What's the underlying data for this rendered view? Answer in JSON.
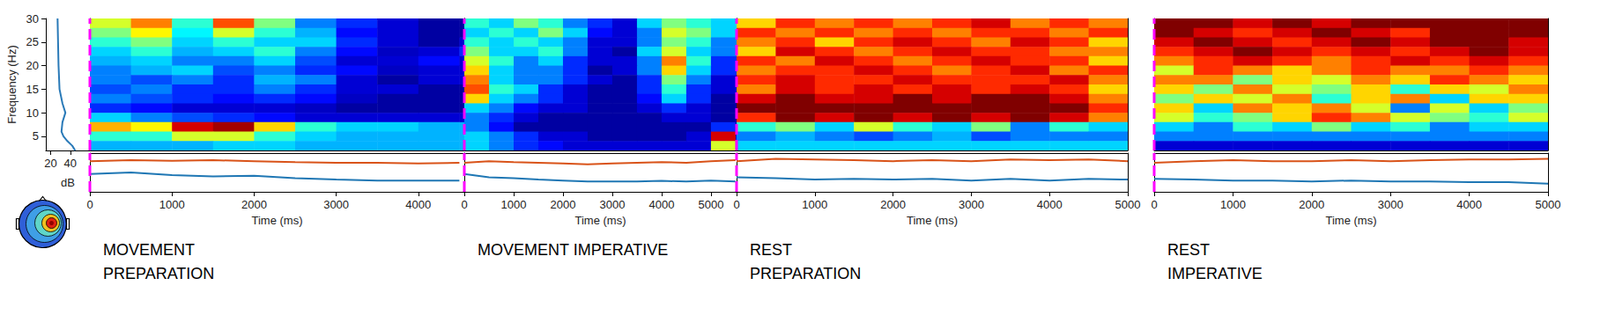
{
  "chart_data": {
    "type": "heatmap",
    "ylabel": "Frequency (Hz)",
    "xlabel": "Time (ms)",
    "ylim": [
      2,
      30
    ],
    "yticks": [
      5,
      10,
      15,
      20,
      25,
      30
    ],
    "freqs": [
      29,
      27,
      25,
      23,
      21,
      19,
      17,
      15,
      13,
      11,
      9,
      7,
      5,
      3
    ],
    "color_range": [
      -3,
      3
    ],
    "event": 0,
    "event_color": "#ff00ff",
    "baseline": {
      "type": "line",
      "xlabel": "dB",
      "xlim": [
        15,
        60
      ],
      "xticks": [
        20,
        40
      ],
      "color": "#2a7ab8",
      "freqs": [
        30,
        25,
        20,
        15,
        12,
        10,
        8,
        6,
        5,
        4,
        3,
        2
      ],
      "values": [
        27,
        27.5,
        28,
        29,
        32,
        35,
        32,
        31,
        33,
        37,
        42,
        45
      ]
    },
    "envelope": {
      "ylim": [
        -6,
        6
      ],
      "colors": [
        "#d95319",
        "#1f77b4"
      ]
    },
    "panels": [
      {
        "label": [
          "MOVEMENT",
          "PREPARATION"
        ],
        "xlim": [
          0,
          4560
        ],
        "xticks": [
          0,
          1000,
          2000,
          3000,
          4000
        ],
        "times": [
          250,
          750,
          1250,
          1750,
          2250,
          2750,
          3250,
          3750,
          4250,
          4750
        ],
        "ersp": [
          [
            0.5,
            1.5,
            -0.5,
            1.8,
            0,
            -1.5,
            -2,
            -2.5,
            -2.8,
            -2.8
          ],
          [
            0,
            0.8,
            -0.8,
            0.5,
            -0.5,
            -1.2,
            -2.2,
            -2.5,
            -2.8,
            -2.8
          ],
          [
            -0.5,
            0,
            -1,
            -0.5,
            -1,
            -1,
            -2,
            -2.5,
            -2.8,
            -2.5
          ],
          [
            -1,
            -0.5,
            -1.2,
            -1,
            -0.5,
            -1.5,
            -2.2,
            -2.6,
            -2.5,
            -2
          ],
          [
            -1.2,
            -1,
            -1.5,
            -1.5,
            -1,
            -1.8,
            -2.5,
            -2.5,
            -2.2,
            -2.5
          ],
          [
            -1.5,
            -1.2,
            -1,
            -1.8,
            -1.5,
            -2,
            -2.2,
            -2.6,
            -2.5,
            -2.5
          ],
          [
            -1.5,
            -1.8,
            -1.5,
            -2,
            -1.2,
            -1.5,
            -2.5,
            -2.8,
            -2.5,
            -2.5
          ],
          [
            -1.8,
            -1.5,
            -2,
            -2,
            -1.5,
            -2,
            -2.5,
            -2.5,
            -2.8,
            -2.8
          ],
          [
            -1.5,
            -1.8,
            -2,
            -2.2,
            -2,
            -2.2,
            -2.6,
            -2.8,
            -2.8,
            -2.8
          ],
          [
            -2,
            -2.2,
            -2.5,
            -2.5,
            -2.5,
            -2.6,
            -2.8,
            -2.8,
            -2.8,
            -2.8
          ],
          [
            -1,
            -1.5,
            -1.8,
            -2,
            -2.2,
            -2.5,
            -2.5,
            -2.5,
            -2.5,
            -2.5
          ],
          [
            1.2,
            0.8,
            2.5,
            2.8,
            1,
            -0.5,
            -1,
            -1,
            -1.2,
            -1.2
          ],
          [
            -0.5,
            -0.5,
            0.5,
            0.5,
            -0.5,
            -1,
            -1.2,
            -1.2,
            -1.2,
            -1.2
          ],
          [
            -1.2,
            -1.2,
            -1.2,
            -1,
            -1,
            -1.2,
            -1.2,
            -1.2,
            -1.2,
            -1.2
          ]
        ],
        "envelope": {
          "x": [
            0,
            500,
            1000,
            1500,
            2000,
            2500,
            3000,
            3500,
            4000,
            4500
          ],
          "upper": [
            3.5,
            3.8,
            3.6,
            3.8,
            3.5,
            3.2,
            3.0,
            3.0,
            2.8,
            3.0
          ],
          "lower": [
            -0.5,
            0,
            -0.8,
            -1.2,
            -1.0,
            -1.8,
            -2.2,
            -2.5,
            -2.5,
            -2.5
          ]
        }
      },
      {
        "label": [
          "MOVEMENT IMPERATIVE"
        ],
        "xlim": [
          0,
          5520
        ],
        "xticks": [
          0,
          1000,
          2000,
          3000,
          4000,
          5000
        ],
        "times": [
          250,
          750,
          1250,
          1750,
          2250,
          2750,
          3250,
          3750,
          4250,
          4750,
          5250,
          5750
        ],
        "ersp": [
          [
            -0.5,
            -1,
            0,
            -0.5,
            -1.5,
            -2,
            -2.5,
            -1,
            0,
            -0.5,
            -1,
            -1
          ],
          [
            -1,
            -0.5,
            -1,
            0,
            -1,
            -2.2,
            -2.5,
            -1.5,
            0.5,
            0,
            -1,
            -1
          ],
          [
            -0.5,
            -1,
            -0.5,
            -1,
            -1.5,
            -2.5,
            -2.5,
            -1.5,
            0,
            -0.5,
            -1.5,
            -1.5
          ],
          [
            0,
            -1,
            -1,
            -0.5,
            -1.5,
            -2.5,
            -2.8,
            -1,
            0.5,
            -1,
            -1.5,
            -1.5
          ],
          [
            0.5,
            -0.5,
            -1.5,
            -1,
            -2,
            -2.5,
            -2.5,
            -1.5,
            1.5,
            -0.5,
            -2,
            -2
          ],
          [
            1,
            -1,
            -1.5,
            -1.5,
            -2,
            -2.8,
            -2.5,
            -1.5,
            1,
            -1,
            -2,
            -2
          ],
          [
            1.5,
            -1,
            -1.5,
            -1.5,
            -2,
            -2.5,
            -2.8,
            -2,
            0,
            -1.5,
            -2.5,
            -2.5
          ],
          [
            1.8,
            -0.5,
            -1,
            -2,
            -2.5,
            -2.8,
            -2.8,
            -2,
            -0.5,
            -2,
            -2.5,
            -2.5
          ],
          [
            1,
            -1,
            -1.5,
            -2,
            -2.5,
            -2.8,
            -2.8,
            -2.2,
            -1,
            -2,
            -2.8,
            -2.8
          ],
          [
            -1,
            -1.5,
            -2.2,
            -2.5,
            -2.5,
            -2.8,
            -2.8,
            -2.5,
            -2,
            -2.5,
            -2.8,
            -2.8
          ],
          [
            -1.5,
            -2,
            -2.5,
            -2.8,
            -2.8,
            -2.8,
            -2.8,
            -2.8,
            -2.5,
            -2.5,
            -2.8,
            -2.8
          ],
          [
            -1.5,
            -2.2,
            -2.8,
            -2.8,
            -2.8,
            -2.8,
            -2.8,
            -2.8,
            -2.8,
            -2.8,
            -2,
            -2.8
          ],
          [
            -1,
            -1.5,
            -2,
            -2.5,
            -2.5,
            -2.8,
            -2.8,
            -2.8,
            -2.8,
            -2.5,
            2.5,
            -2.5
          ],
          [
            -1,
            -1.5,
            -2,
            -2.2,
            -2.5,
            -2.5,
            -2.5,
            -2.5,
            -2.5,
            -2.5,
            0.5,
            -2
          ]
        ],
        "envelope": {
          "x": [
            0,
            500,
            1000,
            1500,
            2000,
            2500,
            3000,
            3500,
            4000,
            4500,
            5000,
            5500
          ],
          "upper": [
            3.0,
            3.5,
            3.2,
            3.0,
            2.8,
            2.5,
            2.8,
            3.0,
            3.2,
            3.0,
            3.5,
            3.8
          ],
          "lower": [
            -0.5,
            -1.5,
            -1.8,
            -2.2,
            -2.5,
            -2.8,
            -2.8,
            -2.8,
            -2.6,
            -2.8,
            -2.5,
            -2.8
          ]
        }
      },
      {
        "label": [
          "REST",
          "PREPARATION"
        ],
        "xlim": [
          0,
          5000
        ],
        "xticks": [
          0,
          1000,
          2000,
          3000,
          4000,
          5000
        ],
        "times": [
          250,
          750,
          1250,
          1750,
          2250,
          2750,
          3250,
          3750,
          4250,
          4750
        ],
        "ersp": [
          [
            1,
            2,
            1.5,
            2,
            1.5,
            2,
            2.5,
            1.5,
            2,
            1.5
          ],
          [
            2,
            1.5,
            2,
            1.5,
            2,
            1.5,
            2,
            2,
            1.5,
            2
          ],
          [
            1.5,
            2,
            1,
            2,
            2.5,
            2,
            1.5,
            2.5,
            2,
            1
          ],
          [
            1,
            2.5,
            2,
            1.5,
            2,
            2.5,
            2,
            2,
            1.5,
            1.5
          ],
          [
            2,
            1.5,
            2.5,
            2,
            1.5,
            2,
            2.5,
            2,
            2,
            1
          ],
          [
            1.5,
            2,
            2,
            2.5,
            2,
            1.5,
            2,
            2.5,
            1.5,
            2
          ],
          [
            2,
            2.5,
            2,
            2,
            2.5,
            2,
            2,
            2,
            2.5,
            1.5
          ],
          [
            1.5,
            2.5,
            2,
            2.5,
            2,
            2.5,
            2,
            2.5,
            2,
            1
          ],
          [
            2.5,
            3,
            2.5,
            2.5,
            3,
            2.5,
            3,
            3,
            2.5,
            1.5
          ],
          [
            3,
            3,
            3,
            3,
            3,
            3,
            3,
            3,
            3,
            2
          ],
          [
            2,
            3,
            2.5,
            3,
            2.5,
            3,
            2.5,
            3,
            2.5,
            1.5
          ],
          [
            -0.5,
            0,
            -1,
            0.5,
            -0.5,
            -1,
            0,
            -1.5,
            -0.5,
            -1
          ],
          [
            -1.5,
            -1.2,
            -1.5,
            -1.8,
            -1.5,
            -1.2,
            -1.8,
            -1.5,
            -1.5,
            -1.5
          ],
          [
            -1,
            -1,
            -1,
            -1,
            -1,
            -1,
            -1,
            -1,
            -1,
            -1
          ]
        ],
        "envelope": {
          "x": [
            0,
            500,
            1000,
            1500,
            2000,
            2500,
            3000,
            3500,
            4000,
            4500,
            5000
          ],
          "upper": [
            3.5,
            4.2,
            4.0,
            3.8,
            3.5,
            3.8,
            3.5,
            4.0,
            3.8,
            4.0,
            3.5
          ],
          "lower": [
            -1.5,
            -1.8,
            -2.2,
            -2.0,
            -2.2,
            -2.0,
            -2.5,
            -2.0,
            -2.5,
            -2.0,
            -2.2
          ]
        }
      },
      {
        "label": [
          "REST",
          "IMPERATIVE"
        ],
        "xlim": [
          0,
          5000
        ],
        "xticks": [
          0,
          1000,
          2000,
          3000,
          4000,
          5000
        ],
        "times": [
          250,
          750,
          1250,
          1750,
          2250,
          2750,
          3250,
          3750,
          4250,
          4750
        ],
        "ersp": [
          [
            3,
            3,
            2.5,
            3,
            2.5,
            3,
            3,
            3,
            3,
            3
          ],
          [
            3,
            2.5,
            2,
            2.5,
            3,
            2.5,
            2,
            3,
            3,
            3
          ],
          [
            2.5,
            3,
            2.5,
            2,
            2.5,
            3,
            2.5,
            3,
            3,
            2.5
          ],
          [
            2,
            2.5,
            3,
            2.5,
            2,
            2.5,
            2,
            2.5,
            3,
            2.5
          ],
          [
            1.5,
            2,
            2.5,
            2,
            1.5,
            2,
            2.5,
            2,
            2.5,
            2
          ],
          [
            0.5,
            2,
            1.5,
            1,
            1.5,
            2,
            1.5,
            1.5,
            2,
            1.5
          ],
          [
            1.5,
            1.5,
            0,
            1,
            0.5,
            1.5,
            1,
            2,
            1.5,
            1
          ],
          [
            1,
            0,
            1.5,
            0.5,
            0,
            1,
            -0.5,
            1,
            0.5,
            1.5
          ],
          [
            0,
            1,
            0.5,
            1.5,
            -0.5,
            1,
            1.5,
            -1,
            1,
            1
          ],
          [
            1,
            -1,
            1.5,
            1,
            1.5,
            0.5,
            -1.5,
            0.5,
            -1,
            0
          ],
          [
            0.5,
            -0.5,
            0,
            1,
            2,
            1.5,
            0.5,
            0,
            -0.5,
            0.5
          ],
          [
            -1,
            -1.5,
            -0.5,
            -1,
            0,
            -1,
            -0.5,
            -1.5,
            -1,
            -1
          ],
          [
            -1.5,
            -1.5,
            -1.5,
            -1.5,
            -1.5,
            -1.5,
            -1.5,
            -1.5,
            -1.5,
            -1.5
          ],
          [
            -2.5,
            -2.5,
            -2.5,
            -2.5,
            -2.5,
            -2.5,
            -2.5,
            -2.5,
            -2.5,
            -2.5
          ]
        ],
        "envelope": {
          "x": [
            0,
            500,
            1000,
            1500,
            2000,
            2500,
            3000,
            3500,
            4000,
            4500,
            5000
          ],
          "upper": [
            3.0,
            3.5,
            3.8,
            3.5,
            3.5,
            3.8,
            3.5,
            3.8,
            4.0,
            4.0,
            4.2
          ],
          "lower": [
            -2.0,
            -2.2,
            -2.5,
            -2.5,
            -2.8,
            -2.5,
            -2.8,
            -2.8,
            -3.0,
            -3.0,
            -3.5
          ]
        }
      }
    ]
  }
}
